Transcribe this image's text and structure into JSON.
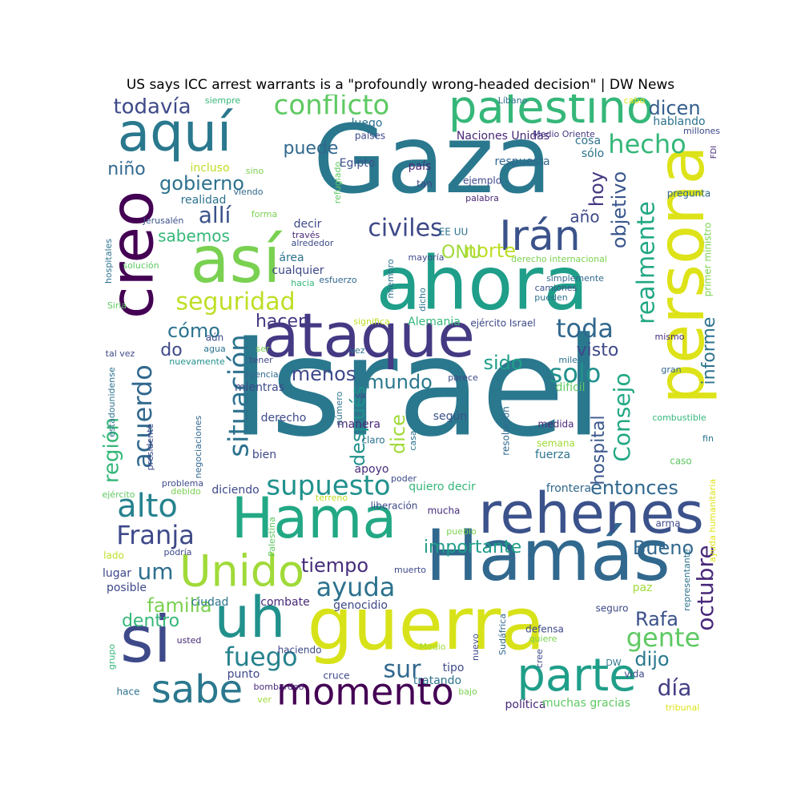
{
  "title": "US says ICC arrest warrants is a \"profoundly wrong-headed decision\" | DW News",
  "words": [
    {
      "text": "Israel",
      "color": "#2a788e"
    },
    {
      "text": "Gaza",
      "color": "#2a788e"
    },
    {
      "text": "ahora",
      "color": "#1f9e89"
    },
    {
      "text": "ataque",
      "color": "#443983"
    },
    {
      "text": "persona",
      "color": "#dde318"
    },
    {
      "text": "guerra",
      "color": "#d8e219"
    },
    {
      "text": "Hamás",
      "color": "#31688e"
    },
    {
      "text": "rehenes",
      "color": "#3b528b"
    },
    {
      "text": "Hama",
      "color": "#22a884"
    },
    {
      "text": "así",
      "color": "#7ad151"
    },
    {
      "text": "creo",
      "color": "#440154"
    },
    {
      "text": "aquí",
      "color": "#2a788e"
    },
    {
      "text": "palestino",
      "color": "#35b779"
    },
    {
      "text": "si",
      "color": "#3e4989"
    },
    {
      "text": "uh",
      "color": "#21918c"
    },
    {
      "text": "parte",
      "color": "#1f9e89"
    },
    {
      "text": "Unido",
      "color": "#a0da39"
    },
    {
      "text": "momento",
      "color": "#440154"
    },
    {
      "text": "sabe",
      "color": "#2a788e"
    },
    {
      "text": "Irán",
      "color": "#3b528b"
    },
    {
      "text": "conflicto",
      "color": "#5ec962"
    },
    {
      "text": "situación",
      "color": "#2c728e"
    },
    {
      "text": "supuesto",
      "color": "#21918c"
    },
    {
      "text": "alto",
      "color": "#26828e"
    },
    {
      "text": "hecho",
      "color": "#35b779"
    },
    {
      "text": "toda",
      "color": "#31688e"
    },
    {
      "text": "solo",
      "color": "#21918c"
    },
    {
      "text": "seguridad",
      "color": "#bddf26"
    },
    {
      "text": "realmente",
      "color": "#22a884"
    },
    {
      "text": "civiles",
      "color": "#3e4989"
    },
    {
      "text": "acuerdo",
      "color": "#31688e"
    },
    {
      "text": "Franja",
      "color": "#3e4989"
    },
    {
      "text": "fuego",
      "color": "#26828e"
    },
    {
      "text": "ayuda",
      "color": "#2c728e"
    },
    {
      "text": "gente",
      "color": "#5ec962"
    },
    {
      "text": "octubre",
      "color": "#482878"
    },
    {
      "text": "Consejo",
      "color": "#22a884"
    },
    {
      "text": "objetivo",
      "color": "#39568c"
    },
    {
      "text": "región",
      "color": "#35b779"
    },
    {
      "text": "después",
      "color": "#21918c"
    },
    {
      "text": "hospital",
      "color": "#39568c"
    },
    {
      "text": "Rafa",
      "color": "#3b528b"
    },
    {
      "text": "todavía",
      "color": "#3e4989"
    },
    {
      "text": "dicen",
      "color": "#355f8d"
    },
    {
      "text": "gobierno",
      "color": "#2c728e"
    },
    {
      "text": "allí",
      "color": "#3b528b"
    },
    {
      "text": "sabemos",
      "color": "#35b779"
    },
    {
      "text": "hacer",
      "color": "#443983"
    },
    {
      "text": "cómo",
      "color": "#2c728e"
    },
    {
      "text": "visto",
      "color": "#3e4989"
    },
    {
      "text": "informe",
      "color": "#2c728e"
    },
    {
      "text": "norte",
      "color": "#bddf26"
    },
    {
      "text": "ONU",
      "color": "#a0da39"
    },
    {
      "text": "menos",
      "color": "#3e4989"
    },
    {
      "text": "mundo",
      "color": "#2a788e"
    },
    {
      "text": "dice",
      "color": "#a0da39"
    },
    {
      "text": "sido",
      "color": "#1f9e89"
    },
    {
      "text": "entonces",
      "color": "#31688e"
    },
    {
      "text": "importante",
      "color": "#1f9e89"
    },
    {
      "text": "Bueno",
      "color": "#31688e"
    },
    {
      "text": "tiempo",
      "color": "#472d7b"
    },
    {
      "text": "familia",
      "color": "#7ad151"
    },
    {
      "text": "dentro",
      "color": "#35b779"
    },
    {
      "text": "um",
      "color": "#2e6f8e"
    },
    {
      "text": "dijo",
      "color": "#2a788e"
    },
    {
      "text": "día",
      "color": "#433e85"
    },
    {
      "text": "sur",
      "color": "#31688e"
    },
    {
      "text": "hoy",
      "color": "#443983"
    },
    {
      "text": "año",
      "color": "#3e4989"
    },
    {
      "text": "puede",
      "color": "#31688e"
    },
    {
      "text": "niño",
      "color": "#31688e"
    },
    {
      "text": "do",
      "color": "#3e4989"
    },
    {
      "text": "Naciones Unidas",
      "color": "#482878"
    },
    {
      "text": "respuesta",
      "color": "#31688e"
    },
    {
      "text": "país",
      "color": "#482878"
    },
    {
      "text": "Egipto",
      "color": "#3b528b"
    },
    {
      "text": "luego",
      "color": "#2c728e"
    },
    {
      "text": "países",
      "color": "#3e4989"
    },
    {
      "text": "cosa",
      "color": "#2c728e"
    },
    {
      "text": "sólo",
      "color": "#2c728e"
    },
    {
      "text": "hablando",
      "color": "#2c728e"
    },
    {
      "text": "millones",
      "color": "#3e4989"
    },
    {
      "text": "FDI",
      "color": "#482878"
    },
    {
      "text": "Medio Oriente",
      "color": "#443983"
    },
    {
      "text": "Líbano",
      "color": "#2c728e"
    },
    {
      "text": "cabo",
      "color": "#dde318"
    },
    {
      "text": "siempre",
      "color": "#35b779"
    },
    {
      "text": "incluso",
      "color": "#bddf26"
    },
    {
      "text": "sino",
      "color": "#7ad151"
    },
    {
      "text": "realidad",
      "color": "#2c728e"
    },
    {
      "text": "viendo",
      "color": "#31688e"
    },
    {
      "text": "refugiado",
      "color": "#5ec962"
    },
    {
      "text": "ejemplo",
      "color": "#3e4989"
    },
    {
      "text": "tan",
      "color": "#3e4989"
    },
    {
      "text": "palabra",
      "color": "#482878"
    },
    {
      "text": "pregunta",
      "color": "#31688e"
    },
    {
      "text": "primer ministro",
      "color": "#7ad151"
    },
    {
      "text": "hospitales",
      "color": "#2c728e"
    },
    {
      "text": "Jerusalén",
      "color": "#3b528b"
    },
    {
      "text": "forma",
      "color": "#7ad151"
    },
    {
      "text": "decir",
      "color": "#3e4989"
    },
    {
      "text": "EE UU",
      "color": "#2c728e"
    },
    {
      "text": "través",
      "color": "#482878"
    },
    {
      "text": "alrededor",
      "color": "#3e4989"
    },
    {
      "text": "solución",
      "color": "#5ec962"
    },
    {
      "text": "área",
      "color": "#2c728e"
    },
    {
      "text": "cualquier",
      "color": "#3e4989"
    },
    {
      "text": "hacia",
      "color": "#35b779"
    },
    {
      "text": "esfuerzo",
      "color": "#31688e"
    },
    {
      "text": "miembro",
      "color": "#2c728e"
    },
    {
      "text": "mayoría",
      "color": "#3e4989"
    },
    {
      "text": "derecho internacional",
      "color": "#7ad151"
    },
    {
      "text": "simplemente",
      "color": "#31688e"
    },
    {
      "text": "camiones",
      "color": "#3b528b"
    },
    {
      "text": "pueden",
      "color": "#2c728e"
    },
    {
      "text": "dicho",
      "color": "#2c728e"
    },
    {
      "text": "Siria",
      "color": "#5ec962"
    },
    {
      "text": "significa",
      "color": "#bddf26"
    },
    {
      "text": "Alemania",
      "color": "#35b779"
    },
    {
      "text": "ejército Israel",
      "color": "#3e4989"
    },
    {
      "text": "mismo",
      "color": "#472d7b"
    },
    {
      "text": "tal vez",
      "color": "#3e4989"
    },
    {
      "text": "agua",
      "color": "#2c728e"
    },
    {
      "text": "aún",
      "color": "#3e4989"
    },
    {
      "text": "ser",
      "color": "#7ad151"
    },
    {
      "text": "vez",
      "color": "#2c728e"
    },
    {
      "text": "nuevamente",
      "color": "#21918c"
    },
    {
      "text": "tener",
      "color": "#3e4989"
    },
    {
      "text": "agencia",
      "color": "#31688e"
    },
    {
      "text": "mientras",
      "color": "#3e4989"
    },
    {
      "text": "miles",
      "color": "#2c728e"
    },
    {
      "text": "parece",
      "color": "#3e4989"
    },
    {
      "text": "difícil",
      "color": "#5ec962"
    },
    {
      "text": "gran",
      "color": "#31688e"
    },
    {
      "text": "estadounidense",
      "color": "#2c728e"
    },
    {
      "text": "presidente",
      "color": "#3e4989"
    },
    {
      "text": "negociaciones",
      "color": "#31688e"
    },
    {
      "text": "derecho",
      "color": "#3e4989"
    },
    {
      "text": "número",
      "color": "#2c728e"
    },
    {
      "text": "va",
      "color": "#3e4989"
    },
    {
      "text": "manera",
      "color": "#482878"
    },
    {
      "text": "según",
      "color": "#3b528b"
    },
    {
      "text": "casa",
      "color": "#2c728e"
    },
    {
      "text": "claro",
      "color": "#2c728e"
    },
    {
      "text": "resolución",
      "color": "#31688e"
    },
    {
      "text": "medida",
      "color": "#482878"
    },
    {
      "text": "combustible",
      "color": "#35b779"
    },
    {
      "text": "fin",
      "color": "#2c728e"
    },
    {
      "text": "semana",
      "color": "#a0da39"
    },
    {
      "text": "fuerza",
      "color": "#2c728e"
    },
    {
      "text": "caso",
      "color": "#5ec962"
    },
    {
      "text": "bien",
      "color": "#3e4989"
    },
    {
      "text": "apoyo",
      "color": "#472d7b"
    },
    {
      "text": "poder",
      "color": "#3e4989"
    },
    {
      "text": "problema",
      "color": "#3e4989"
    },
    {
      "text": "debido",
      "color": "#7ad151"
    },
    {
      "text": "diciendo",
      "color": "#3e4989"
    },
    {
      "text": "quiero decir",
      "color": "#35b779"
    },
    {
      "text": "frontera",
      "color": "#31688e"
    },
    {
      "text": "ejército",
      "color": "#5ec962"
    },
    {
      "text": "terreno",
      "color": "#bddf26"
    },
    {
      "text": "liberación",
      "color": "#3e4989"
    },
    {
      "text": "mucha",
      "color": "#472d7b"
    },
    {
      "text": "ayuda humanitaria",
      "color": "#dde318"
    },
    {
      "text": "arma",
      "color": "#3e4989"
    },
    {
      "text": "Palestina",
      "color": "#5ec962"
    },
    {
      "text": "pueblo",
      "color": "#7ad151"
    },
    {
      "text": "lado",
      "color": "#bddf26"
    },
    {
      "text": "podría",
      "color": "#3e4989"
    },
    {
      "text": "muerto",
      "color": "#3e4989"
    },
    {
      "text": "lugar",
      "color": "#3e4989"
    },
    {
      "text": "representante",
      "color": "#2c728e"
    },
    {
      "text": "posible",
      "color": "#3e4989"
    },
    {
      "text": "ciudad",
      "color": "#2c728e"
    },
    {
      "text": "combate",
      "color": "#482878"
    },
    {
      "text": "genocidio",
      "color": "#3e4989"
    },
    {
      "text": "paz",
      "color": "#a0da39"
    },
    {
      "text": "seguro",
      "color": "#3e4989"
    },
    {
      "text": "defensa",
      "color": "#3e4989"
    },
    {
      "text": "quiere",
      "color": "#7ad151"
    },
    {
      "text": "Sudáfrica",
      "color": "#31688e"
    },
    {
      "text": "nuevo",
      "color": "#3e4989"
    },
    {
      "text": "usted",
      "color": "#482878"
    },
    {
      "text": "haciendo",
      "color": "#3e4989"
    },
    {
      "text": "Medio",
      "color": "#a0da39"
    },
    {
      "text": "grupo",
      "color": "#35b779"
    },
    {
      "text": "tipo",
      "color": "#3e4989"
    },
    {
      "text": "DW",
      "color": "#2c728e"
    },
    {
      "text": "cree",
      "color": "#3e4989"
    },
    {
      "text": "punto",
      "color": "#3e4989"
    },
    {
      "text": "cruce",
      "color": "#3e4989"
    },
    {
      "text": "tratando",
      "color": "#2c728e"
    },
    {
      "text": "vida",
      "color": "#3e4989"
    },
    {
      "text": "hace",
      "color": "#2c728e"
    },
    {
      "text": "bombardeo",
      "color": "#482878"
    },
    {
      "text": "ver",
      "color": "#a0da39"
    },
    {
      "text": "bajo",
      "color": "#7ad151"
    },
    {
      "text": "política",
      "color": "#482878"
    },
    {
      "text": "muchas gracias",
      "color": "#5ec962"
    },
    {
      "text": "tribunal",
      "color": "#dde318"
    }
  ]
}
